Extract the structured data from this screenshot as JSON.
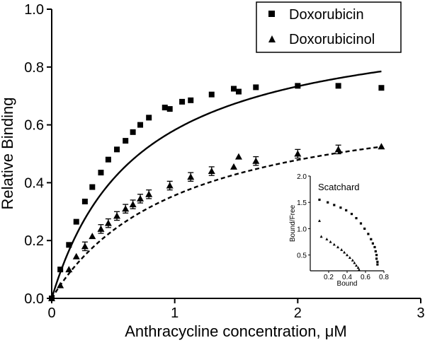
{
  "chart_data": [
    {
      "type": "scatter",
      "title": "",
      "xlabel": "Anthracycline concentration, μM",
      "ylabel": "Relative Binding",
      "xlim": [
        0,
        3
      ],
      "ylim": [
        0,
        1.0
      ],
      "x_ticks": [
        "0",
        "1",
        "2",
        "3"
      ],
      "y_ticks": [
        "0.0",
        "0.2",
        "0.4",
        "0.6",
        "0.8",
        "1.0"
      ],
      "legend_position": "top-right",
      "series": [
        {
          "name": "Doxorubicin",
          "marker": "square",
          "points": [
            [
              0,
              0
            ],
            [
              0.07,
              0.1
            ],
            [
              0.14,
              0.185
            ],
            [
              0.2,
              0.265
            ],
            [
              0.27,
              0.335
            ],
            [
              0.33,
              0.385
            ],
            [
              0.4,
              0.435
            ],
            [
              0.46,
              0.48
            ],
            [
              0.53,
              0.515
            ],
            [
              0.6,
              0.545
            ],
            [
              0.66,
              0.575
            ],
            [
              0.72,
              0.6
            ],
            [
              0.79,
              0.625
            ],
            [
              0.92,
              0.66
            ],
            [
              0.96,
              0.655
            ],
            [
              1.06,
              0.68
            ],
            [
              1.13,
              0.685
            ],
            [
              1.3,
              0.705
            ],
            [
              1.48,
              0.725
            ],
            [
              1.52,
              0.715
            ],
            [
              1.66,
              0.73
            ],
            [
              2.0,
              0.735
            ],
            [
              2.33,
              0.735
            ],
            [
              2.68,
              0.728
            ]
          ],
          "fit": {
            "style": "solid",
            "bmax": 0.99,
            "kd": 0.7
          }
        },
        {
          "name": "Doxorubicinol",
          "marker": "triangle",
          "points": [
            [
              0,
              0
            ],
            [
              0.07,
              0.045
            ],
            [
              0.14,
              0.1
            ],
            [
              0.2,
              0.145
            ],
            [
              0.27,
              0.18
            ],
            [
              0.33,
              0.215
            ],
            [
              0.4,
              0.24
            ],
            [
              0.46,
              0.26
            ],
            [
              0.53,
              0.285
            ],
            [
              0.6,
              0.31
            ],
            [
              0.66,
              0.325
            ],
            [
              0.72,
              0.345
            ],
            [
              0.79,
              0.36
            ],
            [
              0.96,
              0.39
            ],
            [
              1.13,
              0.42
            ],
            [
              1.3,
              0.44
            ],
            [
              1.48,
              0.455
            ],
            [
              1.52,
              0.49
            ],
            [
              1.66,
              0.475
            ],
            [
              2.0,
              0.5
            ],
            [
              2.33,
              0.515
            ],
            [
              2.68,
              0.525
            ]
          ],
          "error_bars_at": [
            0.27,
            0.4,
            0.46,
            0.53,
            0.6,
            0.66,
            0.72,
            0.79,
            0.96,
            1.13,
            1.3,
            1.66,
            2.0,
            2.33
          ],
          "error_size": 0.015,
          "fit": {
            "style": "dashed",
            "bmax": 0.73,
            "kd": 1.05
          }
        }
      ]
    },
    {
      "type": "scatter",
      "title": "Scatchard",
      "xlabel": "Bound",
      "ylabel": "Bound/Free",
      "xlim": [
        0,
        0.8
      ],
      "ylim": [
        0.2,
        2.0
      ],
      "x_ticks": [
        "0.2",
        "0.4",
        "0.6",
        "0.8"
      ],
      "y_ticks": [
        "0.5",
        "1.0",
        "1.5",
        "2.0"
      ],
      "series": [
        {
          "marker": "square",
          "points": [
            [
              0.1,
              1.55
            ],
            [
              0.19,
              1.5
            ],
            [
              0.26,
              1.45
            ],
            [
              0.33,
              1.4
            ],
            [
              0.39,
              1.35
            ],
            [
              0.45,
              1.28
            ],
            [
              0.5,
              1.2
            ],
            [
              0.55,
              1.1
            ],
            [
              0.59,
              1.0
            ],
            [
              0.63,
              0.9
            ],
            [
              0.66,
              0.8
            ],
            [
              0.68,
              0.72
            ],
            [
              0.7,
              0.65
            ],
            [
              0.71,
              0.57
            ],
            [
              0.72,
              0.5
            ],
            [
              0.72,
              0.43
            ],
            [
              0.73,
              0.37
            ],
            [
              0.73,
              0.32
            ]
          ]
        },
        {
          "marker": "triangle",
          "points": [
            [
              0.1,
              1.15
            ],
            [
              0.12,
              0.85
            ],
            [
              0.18,
              0.8
            ],
            [
              0.22,
              0.75
            ],
            [
              0.26,
              0.7
            ],
            [
              0.3,
              0.65
            ],
            [
              0.34,
              0.6
            ],
            [
              0.37,
              0.55
            ],
            [
              0.4,
              0.5
            ],
            [
              0.43,
              0.45
            ],
            [
              0.46,
              0.4
            ],
            [
              0.48,
              0.35
            ],
            [
              0.5,
              0.3
            ],
            [
              0.52,
              0.26
            ],
            [
              0.53,
              0.22
            ]
          ]
        }
      ]
    }
  ]
}
